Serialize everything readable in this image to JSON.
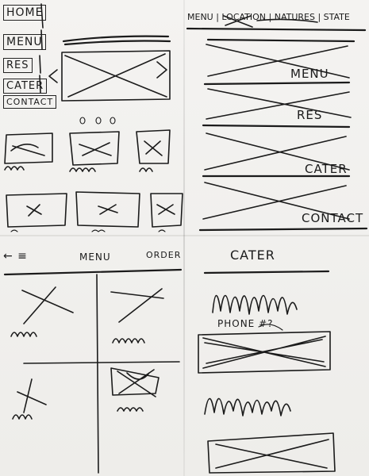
{
  "panel1": {
    "nav": [
      "HOME",
      "MENU",
      "RES",
      "CATER",
      "CONTACT"
    ]
  },
  "panel2": {
    "topnav": "MENU | LOCATION | NATURES | STATE",
    "sections": [
      "MENU",
      "RES",
      "CATER",
      "CONTACT"
    ]
  },
  "panel3": {
    "back": "← ≡",
    "menu": "MENU",
    "order": "ORDER"
  },
  "panel4": {
    "title": "CATER",
    "phone": "PHONE #?"
  }
}
